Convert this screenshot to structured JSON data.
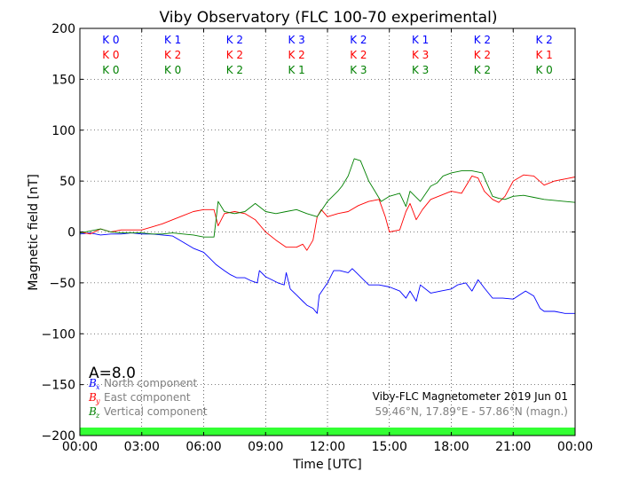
{
  "chart_data": {
    "type": "line",
    "title": "Viby Observatory (FLC 100-70 experimental)",
    "xlabel": "Time [UTC]",
    "ylabel": "Magnetic field [nT]",
    "xlim": [
      0,
      24
    ],
    "ylim": [
      -200,
      200
    ],
    "xticks": [
      0,
      3,
      6,
      9,
      12,
      15,
      18,
      21,
      24
    ],
    "xtick_labels": [
      "00:00",
      "03:00",
      "06:00",
      "09:00",
      "12:00",
      "15:00",
      "18:00",
      "21:00",
      "00:00"
    ],
    "yticks": [
      -200,
      -150,
      -100,
      -50,
      0,
      50,
      100,
      150,
      200
    ],
    "ytick_labels": [
      "−200",
      "−150",
      "−100",
      "−50",
      "0",
      "50",
      "100",
      "150",
      "200"
    ],
    "grid": true,
    "series": [
      {
        "name": "North component",
        "color": "#0000ff",
        "x": [
          0,
          0.5,
          1.0,
          1.5,
          2.0,
          2.5,
          3.0,
          3.5,
          4.0,
          4.5,
          5.0,
          5.5,
          6.0,
          6.3,
          6.6,
          7.0,
          7.3,
          7.6,
          8.0,
          8.3,
          8.6,
          8.7,
          9.0,
          9.3,
          9.6,
          9.9,
          10.0,
          10.2,
          10.5,
          10.8,
          11.0,
          11.3,
          11.5,
          11.6,
          12.0,
          12.3,
          12.6,
          13.0,
          13.2,
          13.5,
          14.0,
          14.5,
          15.0,
          15.5,
          15.8,
          16.0,
          16.3,
          16.5,
          17.0,
          17.5,
          18.0,
          18.3,
          18.7,
          19.0,
          19.3,
          19.6,
          20.0,
          20.5,
          21.0,
          21.3,
          21.6,
          22.0,
          22.3,
          22.5,
          23.0,
          23.5,
          24.0
        ],
        "values": [
          -2,
          -1,
          -3,
          -2,
          -2,
          -1,
          -2,
          -2,
          -3,
          -4,
          -10,
          -16,
          -20,
          -26,
          -32,
          -38,
          -42,
          -45,
          -45,
          -48,
          -50,
          -38,
          -44,
          -47,
          -50,
          -52,
          -40,
          -56,
          -62,
          -68,
          -72,
          -75,
          -80,
          -62,
          -50,
          -38,
          -38,
          -40,
          -36,
          -42,
          -52,
          -52,
          -54,
          -58,
          -65,
          -58,
          -68,
          -52,
          -60,
          -58,
          -56,
          -52,
          -50,
          -58,
          -47,
          -55,
          -65,
          -65,
          -66,
          -62,
          -58,
          -63,
          -75,
          -78,
          -78,
          -80,
          -80
        ]
      },
      {
        "name": "East component",
        "color": "#ff0000",
        "x": [
          0,
          0.5,
          1.0,
          1.5,
          2.0,
          2.5,
          3.0,
          3.5,
          4.0,
          4.5,
          5.0,
          5.5,
          6.0,
          6.5,
          6.7,
          7.0,
          7.5,
          8.0,
          8.5,
          9.0,
          9.5,
          10.0,
          10.5,
          10.8,
          11.0,
          11.3,
          11.5,
          11.7,
          12.0,
          12.5,
          13.0,
          13.5,
          14.0,
          14.5,
          14.8,
          15.0,
          15.5,
          15.8,
          16.0,
          16.3,
          16.6,
          17.0,
          17.5,
          18.0,
          18.5,
          19.0,
          19.3,
          19.6,
          20.0,
          20.3,
          20.6,
          21.0,
          21.5,
          22.0,
          22.5,
          23.0,
          23.5,
          24.0
        ],
        "values": [
          0,
          -2,
          3,
          0,
          2,
          2,
          2,
          5,
          8,
          12,
          16,
          20,
          22,
          22,
          6,
          18,
          20,
          18,
          12,
          0,
          -8,
          -15,
          -15,
          -12,
          -18,
          -8,
          15,
          22,
          15,
          18,
          20,
          26,
          30,
          32,
          15,
          0,
          2,
          20,
          28,
          12,
          22,
          32,
          36,
          40,
          38,
          55,
          53,
          40,
          32,
          29,
          35,
          50,
          56,
          55,
          46,
          50,
          52,
          54
        ]
      },
      {
        "name": "Vertical component",
        "color": "#008000",
        "x": [
          0,
          0.5,
          1.0,
          1.5,
          2.0,
          2.5,
          3.0,
          3.5,
          4.0,
          4.5,
          5.0,
          5.5,
          6.0,
          6.5,
          6.7,
          7.0,
          7.5,
          8.0,
          8.5,
          9.0,
          9.5,
          10.0,
          10.5,
          11.0,
          11.5,
          12.0,
          12.5,
          12.7,
          13.0,
          13.3,
          13.6,
          14.0,
          14.3,
          14.6,
          15.0,
          15.5,
          15.8,
          16.0,
          16.5,
          17.0,
          17.3,
          17.6,
          18.0,
          18.5,
          19.0,
          19.5,
          20.0,
          20.3,
          20.6,
          21.0,
          21.5,
          22.0,
          22.5,
          23.0,
          23.5,
          24.0
        ],
        "values": [
          -1,
          1,
          3,
          0,
          -1,
          -1,
          -1,
          -2,
          -2,
          -1,
          -2,
          -3,
          -5,
          -5,
          30,
          20,
          18,
          20,
          28,
          20,
          18,
          20,
          22,
          18,
          15,
          30,
          40,
          45,
          55,
          72,
          70,
          50,
          40,
          30,
          35,
          38,
          25,
          40,
          30,
          45,
          48,
          55,
          58,
          60,
          60,
          58,
          35,
          33,
          32,
          35,
          36,
          34,
          32,
          31,
          30,
          29
        ]
      }
    ],
    "k_index_rows": [
      {
        "color": "#0000ff",
        "values": [
          "K 0",
          "K 1",
          "K 2",
          "K 3",
          "K 2",
          "K 1",
          "K 2",
          "K 2"
        ]
      },
      {
        "color": "#ff0000",
        "values": [
          "K 0",
          "K 2",
          "K 2",
          "K 2",
          "K 2",
          "K 3",
          "K 2",
          "K 1"
        ]
      },
      {
        "color": "#008000",
        "values": [
          "K 0",
          "K 0",
          "K 2",
          "K 1",
          "K 3",
          "K 3",
          "K 2",
          "K 0"
        ]
      }
    ],
    "a_index": "A=8.0",
    "legend": {
      "placement": "lower-left",
      "items": [
        {
          "symbol": "B",
          "subscript": "x",
          "label": "North component",
          "color": "#0000ff"
        },
        {
          "symbol": "B",
          "subscript": "y",
          "label": "East component",
          "color": "#ff0000"
        },
        {
          "symbol": "B",
          "subscript": "z",
          "label": "Vertical component",
          "color": "#008000"
        }
      ]
    },
    "annotation": {
      "line1": "Viby-FLC Magnetometer 2019 Jun 01",
      "line2": "59.46°N, 17.89°E - 57.86°N (magn.)",
      "line2_color": "#808080"
    },
    "status_bar_color": "#33ff33"
  }
}
